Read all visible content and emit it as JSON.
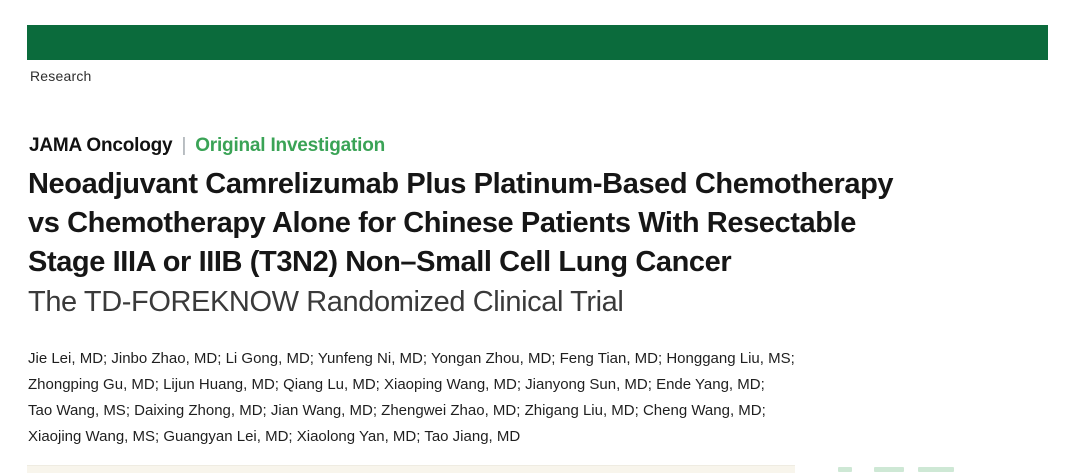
{
  "section_label": "Research",
  "kicker": {
    "journal": "JAMA Oncology",
    "separator": "|",
    "article_type": "Original Investigation"
  },
  "title": {
    "lines": [
      "Neoadjuvant Camrelizumab Plus Platinum-Based Chemotherapy",
      "vs Chemotherapy Alone for Chinese Patients With Resectable",
      "Stage IIIA or IIIB (T3N2) Non–Small Cell Lung Cancer"
    ],
    "subtitle": "The TD-FOREKNOW Randomized Clinical Trial"
  },
  "authors": {
    "lines": [
      "Jie Lei, MD; Jinbo Zhao, MD; Li Gong, MD; Yunfeng Ni, MD; Yongan Zhou, MD; Feng Tian, MD; Honggang Liu, MS;",
      "Zhongping Gu, MD; Lijun Huang, MD; Qiang Lu, MD; Xiaoping Wang, MD; Jianyong Sun, MD; Ende Yang, MD;",
      "Tao Wang, MS; Daixing Zhong, MD; Jian Wang, MD; Zhengwei Zhao, MD; Zhigang Liu, MD; Cheng Wang, MD;",
      "Xiaojing Wang, MS; Guangyan Lei, MD; Xiaolong Yan, MD; Tao Jiang, MD"
    ]
  },
  "colors": {
    "jama_green": "#0b6b3c",
    "accent_green": "#3aa356",
    "separator_gray": "#a7adb3",
    "title_black": "#161616",
    "cutoff_panel_cream": "#f8f5ec"
  }
}
